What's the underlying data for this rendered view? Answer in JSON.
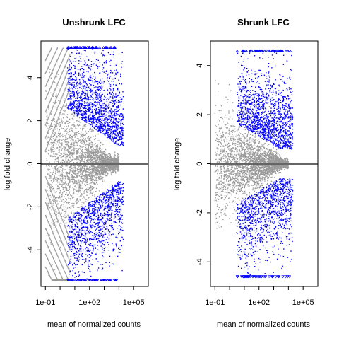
{
  "chart_data": [
    {
      "type": "scatter",
      "title": "Unshrunk LFC",
      "xlabel": "mean of normalized counts",
      "ylabel": "log fold change",
      "x_scale": "log10",
      "xlim": [
        0.05,
        1000000
      ],
      "ylim": [
        -5.7,
        5.7
      ],
      "x_ticks": [
        {
          "value": 0.1,
          "label": "1e-01"
        },
        {
          "value": 100,
          "label": "1e+02"
        },
        {
          "value": 100000,
          "label": "1e+05"
        }
      ],
      "y_ticks": [
        {
          "value": -4,
          "label": "-4"
        },
        {
          "value": -2,
          "label": "-2"
        },
        {
          "value": 0,
          "label": "0"
        },
        {
          "value": 2,
          "label": "2"
        },
        {
          "value": 4,
          "label": "4"
        }
      ],
      "reference_line": {
        "y": 0,
        "color": "#666666"
      },
      "point_cap": 5.4,
      "series": [
        {
          "color": "#9a9a9a"
        },
        {
          "color": "#0000ff"
        }
      ]
    },
    {
      "type": "scatter",
      "title": "Shrunk LFC",
      "xlabel": "mean of normalized counts",
      "ylabel": "log fold change",
      "x_scale": "log10",
      "xlim": [
        0.05,
        1000000
      ],
      "ylim": [
        -5.0,
        5.0
      ],
      "x_ticks": [
        {
          "value": 0.1,
          "label": "1e-01"
        },
        {
          "value": 100,
          "label": "1e+02"
        },
        {
          "value": 100000,
          "label": "1e+05"
        }
      ],
      "y_ticks": [
        {
          "value": -4,
          "label": "-4"
        },
        {
          "value": -2,
          "label": "-2"
        },
        {
          "value": 0,
          "label": "0"
        },
        {
          "value": 2,
          "label": "2"
        },
        {
          "value": 4,
          "label": "4"
        }
      ],
      "reference_line": {
        "y": 0,
        "color": "#666666"
      },
      "point_cap": 4.6,
      "series": [
        {
          "color": "#9a9a9a"
        },
        {
          "color": "#0000ff"
        }
      ]
    }
  ]
}
